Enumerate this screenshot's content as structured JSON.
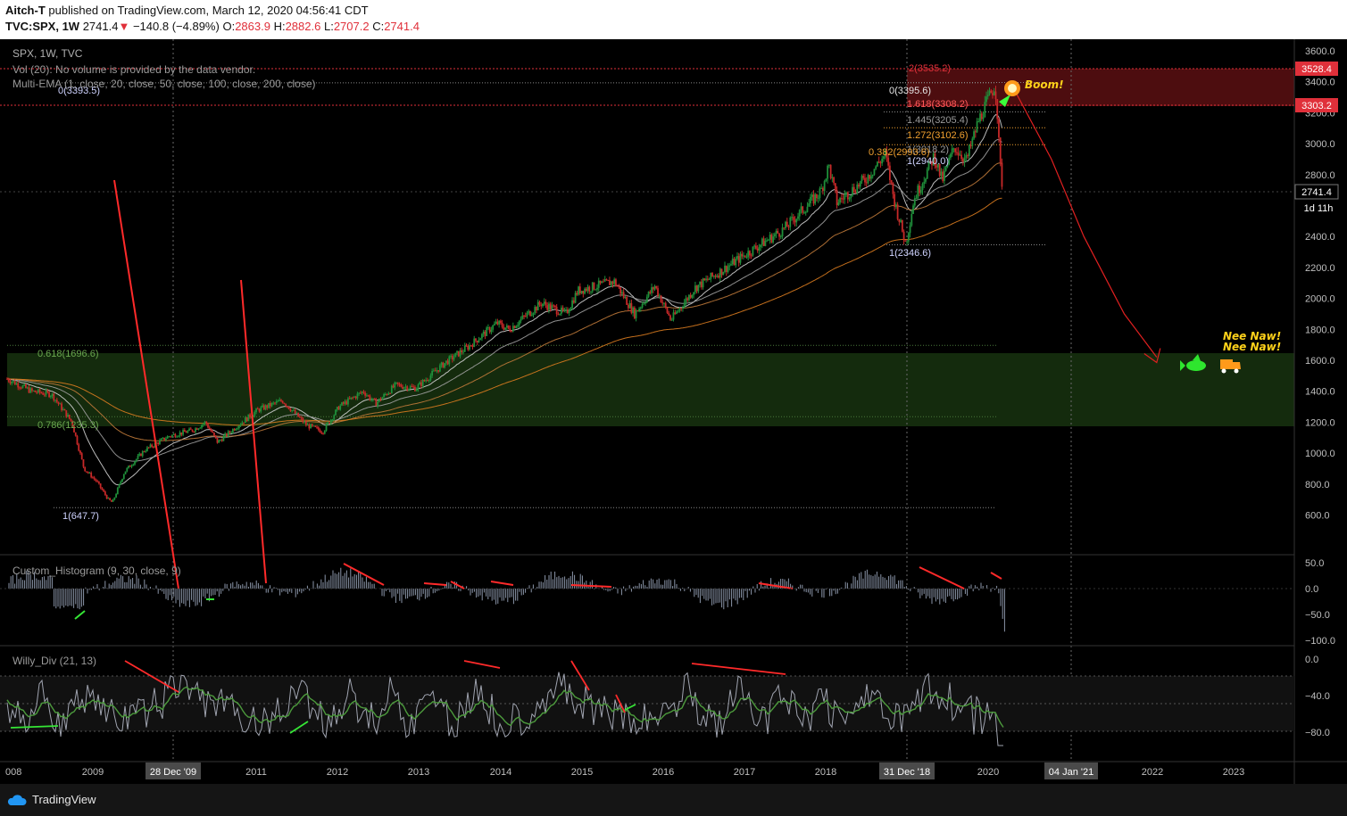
{
  "header": {
    "author": "Aitch-T",
    "published_text": "published on TradingView.com, March 12, 2020 04:56:41 CDT",
    "symbol": "TVC:SPX, 1W",
    "last": "2741.4",
    "change": "−140.8 (−4.89%)",
    "o_label": "O:",
    "o_val": "2863.9",
    "h_label": "H:",
    "h_val": "2882.6",
    "l_label": "L:",
    "l_val": "2707.2",
    "c_label": "C:",
    "c_val": "2741.4",
    "colors": {
      "down": "#e0303a"
    }
  },
  "legend": {
    "title": "SPX, 1W, TVC",
    "volume": "Vol (20): No volume is provided by the data vendor.",
    "ema": "Multi-EMA (1, close, 20, close, 50, close, 100, close, 200, close)",
    "histogram": "Custom_Histogram (9, 30, close, 9)",
    "willy": "Willy_Div (21, 13)"
  },
  "price_axis": {
    "ticks": [
      "3600.0",
      "3400.0",
      "3200.0",
      "3000.0",
      "2800.0",
      "2600.0",
      "2400.0",
      "2200.0",
      "2000.0",
      "1800.0",
      "1600.0",
      "1400.0",
      "1200.0",
      "1000.0",
      "800.0",
      "600.0"
    ],
    "badge_top": "3528.4",
    "badge_mid": "3303.2",
    "badge_last": "2741.4",
    "badge_time": "1d 11h"
  },
  "hist_axis": {
    "ticks": [
      "50.0",
      "0.0",
      "−50.0",
      "−100.0"
    ]
  },
  "willy_axis": {
    "ticks": [
      "0.0",
      "−40.0",
      "−80.0"
    ]
  },
  "time_axis": {
    "labels": [
      "008",
      "2009",
      "2011",
      "2012",
      "2013",
      "2014",
      "2015",
      "2016",
      "2017",
      "2018",
      "2020",
      "2022",
      "2023"
    ],
    "badges": [
      "28 Dec '09",
      "31 Dec '18",
      "04 Jan '21"
    ]
  },
  "fib_labels": {
    "left_top": "0(3393.5)",
    "left_618": "0.618(1696.6)",
    "left_786": "0.786(1235.3)",
    "left_bottom": "1(647.7)",
    "r_2": "2(3535.2)",
    "r_0": "0(3395.6)",
    "r_1618": "1.618(3308.2)",
    "r_1445": "1.445(3205.4)",
    "r_1272": "1.272(3102.6)",
    "r_1": "1(3018.2)",
    "r_0382": "0.382(2993.6)",
    "r_1b": "1(2940.0)",
    "r_bottom": "1(2346.6)"
  },
  "annotations": {
    "boom": "Boom!",
    "nee1": "Nee Naw!",
    "nee2": "Nee Naw!"
  },
  "footer": {
    "brand": "TradingView"
  },
  "chart_data": {
    "type": "line",
    "title": "SPX, 1W, TVC",
    "ylim": [
      500,
      3650
    ],
    "x_year_range": [
      2007.9,
      2023.8
    ],
    "points": [
      [
        2007.9,
        1480
      ],
      [
        2008.2,
        1400
      ],
      [
        2008.45,
        1380
      ],
      [
        2008.7,
        1200
      ],
      [
        2008.85,
        900
      ],
      [
        2009.0,
        820
      ],
      [
        2009.15,
        700
      ],
      [
        2009.2,
        680
      ],
      [
        2009.35,
        880
      ],
      [
        2009.6,
        1020
      ],
      [
        2009.9,
        1110
      ],
      [
        2010.2,
        1150
      ],
      [
        2010.35,
        1200
      ],
      [
        2010.5,
        1070
      ],
      [
        2010.75,
        1180
      ],
      [
        2011.0,
        1280
      ],
      [
        2011.3,
        1340
      ],
      [
        2011.6,
        1180
      ],
      [
        2011.8,
        1140
      ],
      [
        2012.0,
        1300
      ],
      [
        2012.3,
        1400
      ],
      [
        2012.45,
        1320
      ],
      [
        2012.7,
        1440
      ],
      [
        2012.95,
        1420
      ],
      [
        2013.3,
        1580
      ],
      [
        2013.6,
        1690
      ],
      [
        2013.95,
        1840
      ],
      [
        2014.1,
        1800
      ],
      [
        2014.5,
        1970
      ],
      [
        2014.8,
        1900
      ],
      [
        2014.95,
        2050
      ],
      [
        2015.4,
        2110
      ],
      [
        2015.65,
        1900
      ],
      [
        2015.9,
        2080
      ],
      [
        2016.1,
        1860
      ],
      [
        2016.4,
        2070
      ],
      [
        2016.7,
        2170
      ],
      [
        2016.95,
        2260
      ],
      [
        2017.5,
        2450
      ],
      [
        2017.95,
        2690
      ],
      [
        2018.05,
        2860
      ],
      [
        2018.15,
        2620
      ],
      [
        2018.5,
        2770
      ],
      [
        2018.75,
        2930
      ],
      [
        2018.85,
        2650
      ],
      [
        2019.0,
        2350
      ],
      [
        2019.1,
        2640
      ],
      [
        2019.35,
        2920
      ],
      [
        2019.45,
        2760
      ],
      [
        2019.6,
        2980
      ],
      [
        2019.75,
        2890
      ],
      [
        2019.9,
        3150
      ],
      [
        2020.1,
        3380
      ],
      [
        2020.12,
        3300
      ],
      [
        2020.16,
        2900
      ],
      [
        2020.19,
        2741
      ]
    ],
    "last_price": 2741.4,
    "fibonacci_levels": [
      {
        "label": "0(3393.5)",
        "value": 3393.5
      },
      {
        "label": "0.618(1696.6)",
        "value": 1696.6
      },
      {
        "label": "0.786(1235.3)",
        "value": 1235.3
      },
      {
        "label": "1(647.7)",
        "value": 647.7
      },
      {
        "label": "2(3535.2)",
        "value": 3535.2
      },
      {
        "label": "0(3395.6)",
        "value": 3395.6
      },
      {
        "label": "1.618(3308.2)",
        "value": 3308.2
      },
      {
        "label": "1.445(3205.4)",
        "value": 3205.4
      },
      {
        "label": "1.272(3102.6)",
        "value": 3102.6
      },
      {
        "label": "0.382(2993.6)",
        "value": 2993.6
      },
      {
        "label": "1(2346.6)",
        "value": 2346.6
      }
    ],
    "projection": [
      [
        2020.35,
        3340
      ],
      [
        2020.8,
        2900
      ],
      [
        2021.2,
        2400
      ],
      [
        2021.7,
        1900
      ],
      [
        2022.1,
        1620
      ]
    ],
    "colors": {
      "up": "#26a69a",
      "candle_up": "#1f8f3a",
      "candle_down": "#c62828",
      "ema20": "#9e9e9e",
      "ema200": "#d97b1f",
      "zone": "#1b3a12",
      "projection": "#e02020"
    }
  }
}
